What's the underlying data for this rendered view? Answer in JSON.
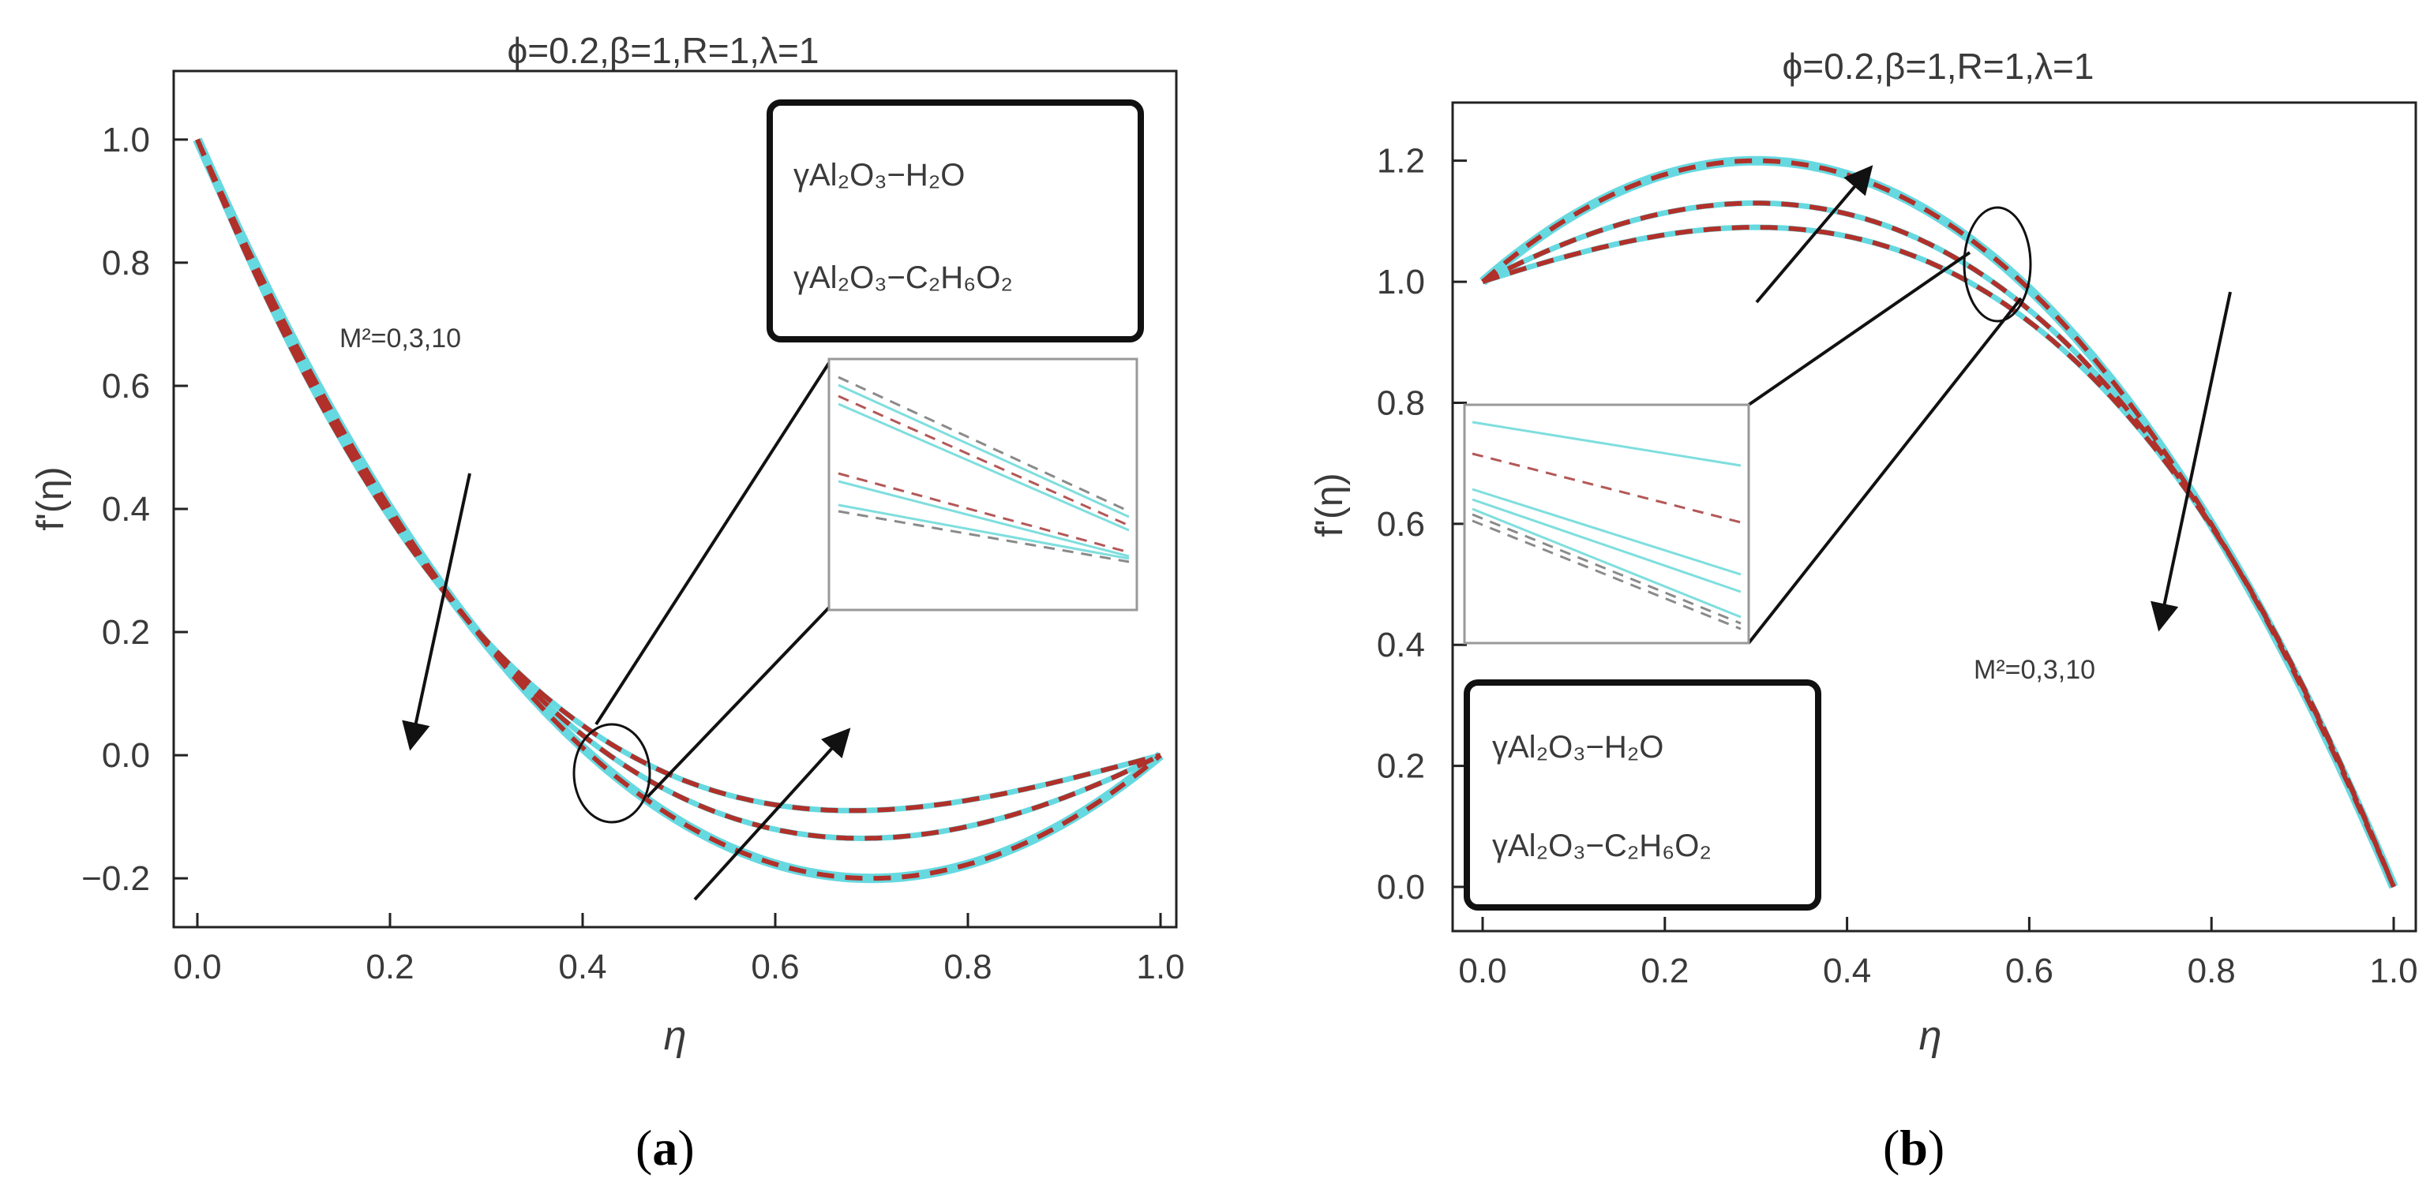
{
  "chart_data": [
    {
      "type": "line",
      "panel": "a",
      "caption_open": "(",
      "caption_letter": "a",
      "caption_close": ")",
      "title": "ϕ=0.2,β=1,R=1,λ=1",
      "xlabel": "η",
      "ylabel": "f'(η)",
      "xlim": [
        0,
        1
      ],
      "ylim": [
        -0.26,
        1.06
      ],
      "xticks": [
        "0.0",
        "0.2",
        "0.4",
        "0.6",
        "0.8",
        "1.0"
      ],
      "yticks": [
        "−0.2",
        "0.0",
        "0.2",
        "0.4",
        "0.6",
        "0.8",
        "1.0"
      ],
      "ytick_values": [
        -0.2,
        0.0,
        0.2,
        0.4,
        0.6,
        0.8,
        1.0
      ],
      "legend_position": "top-right",
      "legend": [
        "γAl₂O₃−H₂O",
        "γAl₂O₃−C₂H₆O₂"
      ],
      "annotation": "M²=0,3,10",
      "parameter": "M²",
      "parameter_values": [
        0,
        3,
        10
      ],
      "series": [
        {
          "name": "γAl₂O₃−H₂O",
          "M2": 0,
          "min_at": 0.7,
          "min_value": -0.2
        },
        {
          "name": "γAl₂O₃−H₂O",
          "M2": 3,
          "min_at": 0.69,
          "min_value": -0.135
        },
        {
          "name": "γAl₂O₃−H₂O",
          "M2": 10,
          "min_at": 0.68,
          "min_value": -0.09
        },
        {
          "name": "γAl₂O₃−C₂H₆O₂",
          "M2": 0,
          "min_at": 0.7,
          "min_value": -0.2
        },
        {
          "name": "γAl₂O₃−C₂H₆O₂",
          "M2": 3,
          "min_at": 0.69,
          "min_value": -0.135
        },
        {
          "name": "γAl₂O₃−C₂H₆O₂",
          "M2": 10,
          "min_at": 0.68,
          "min_value": -0.09
        }
      ]
    },
    {
      "type": "line",
      "panel": "b",
      "caption_open": "(",
      "caption_letter": "b",
      "caption_close": ")",
      "title": "ϕ=0.2,β=1,R=1,λ=1",
      "xlabel": "η",
      "ylabel": "f'(η)",
      "xlim": [
        0,
        1
      ],
      "ylim": [
        -0.06,
        1.27
      ],
      "xticks": [
        "0.0",
        "0.2",
        "0.4",
        "0.6",
        "0.8",
        "1.0"
      ],
      "yticks": [
        "0.0",
        "0.2",
        "0.4",
        "0.6",
        "0.8",
        "1.0",
        "1.2"
      ],
      "ytick_values": [
        0.0,
        0.2,
        0.4,
        0.6,
        0.8,
        1.0,
        1.2
      ],
      "legend_position": "bottom-left",
      "legend": [
        "γAl₂O₃−H₂O",
        "γAl₂O₃−C₂H₆O₂"
      ],
      "annotation": "M²=0,3,10",
      "parameter": "M²",
      "parameter_values": [
        0,
        3,
        10
      ],
      "series": [
        {
          "name": "γAl₂O₃−H₂O",
          "M2": 0,
          "max_at": 0.3,
          "max_value": 1.2
        },
        {
          "name": "γAl₂O₃−H₂O",
          "M2": 3,
          "max_at": 0.3,
          "max_value": 1.13
        },
        {
          "name": "γAl₂O₃−H₂O",
          "M2": 10,
          "max_at": 0.3,
          "max_value": 1.09
        },
        {
          "name": "γAl₂O₃−C₂H₆O₂",
          "M2": 0,
          "max_at": 0.3,
          "max_value": 1.2
        },
        {
          "name": "γAl₂O₃−C₂H₆O₂",
          "M2": 3,
          "max_at": 0.3,
          "max_value": 1.13
        },
        {
          "name": "γAl₂O₃−C₂H₆O₂",
          "M2": 10,
          "max_at": 0.3,
          "max_value": 1.09
        }
      ]
    }
  ]
}
